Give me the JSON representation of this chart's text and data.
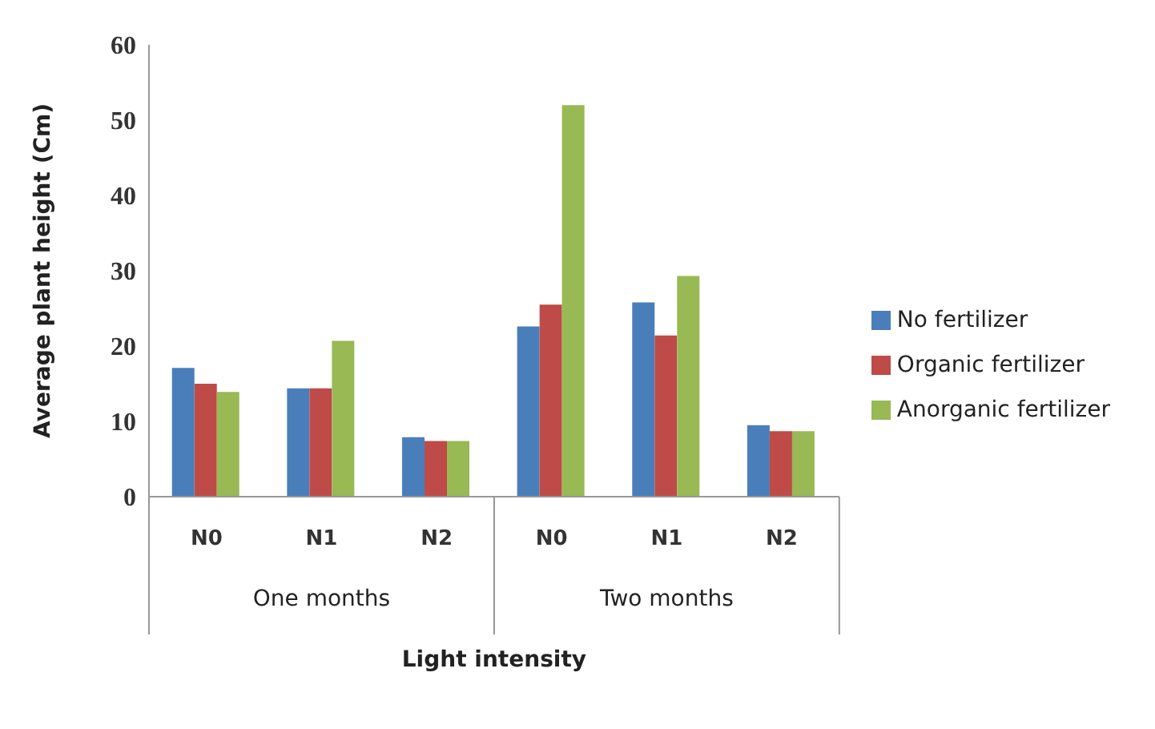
{
  "chart_data": {
    "type": "bar",
    "categories": [
      "N0",
      "N1",
      "N2",
      "N0",
      "N1",
      "N2"
    ],
    "series": [
      {
        "name": "No fertilizer",
        "color": "#4a7ebb",
        "values": [
          17.1,
          14.4,
          7.9,
          22.6,
          25.8,
          9.5
        ]
      },
      {
        "name": "Organic fertilizer",
        "color": "#be4b48",
        "values": [
          15.0,
          14.4,
          7.4,
          25.5,
          21.4,
          8.7
        ]
      },
      {
        "name": "Anorganic fertilizer",
        "color": "#98b954",
        "values": [
          13.9,
          20.7,
          7.4,
          52.0,
          29.3,
          8.7
        ]
      }
    ],
    "ylabel": "Average plant height (Cm)",
    "xlabel": "Light intensity",
    "annotations": [
      "One months",
      "Two months"
    ],
    "ylim": [
      0,
      60
    ],
    "yticks": [
      0,
      10,
      20,
      30,
      40,
      50,
      60
    ],
    "grid": false,
    "legend": "right"
  }
}
